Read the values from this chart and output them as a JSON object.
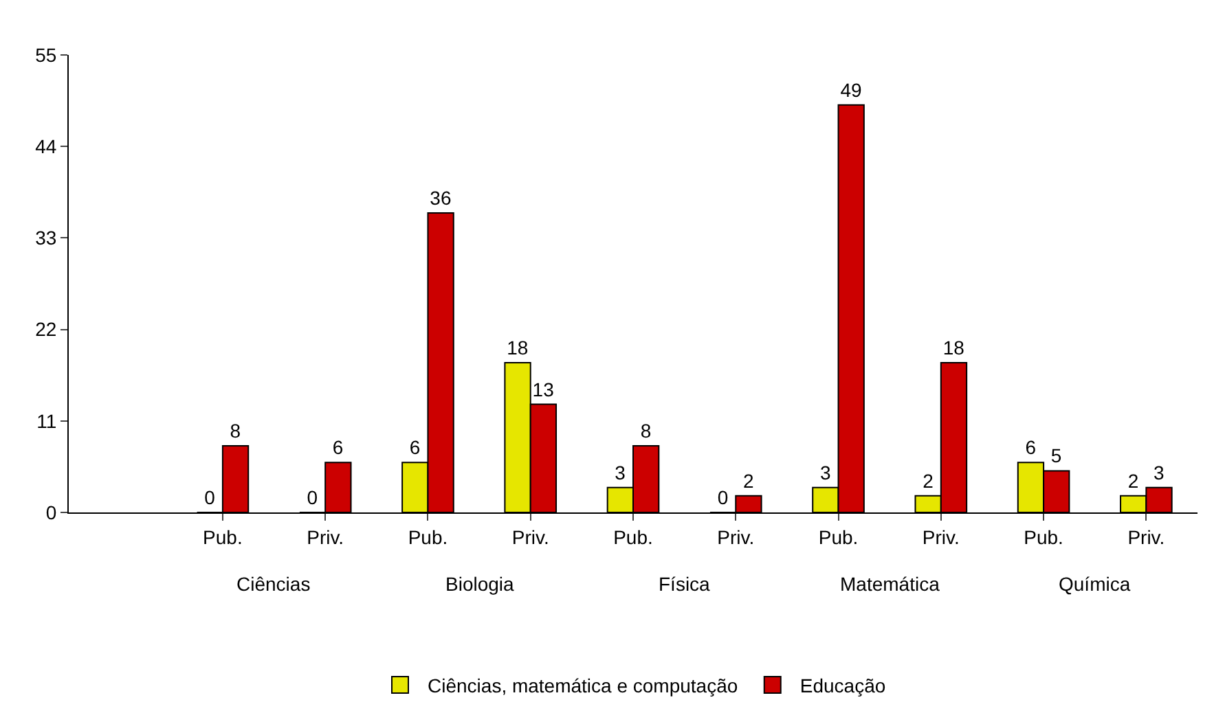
{
  "chart_data": {
    "type": "bar",
    "categories": [
      null,
      "Pub.",
      "Priv.",
      "Pub.",
      "Priv.",
      "Pub.",
      "Priv.",
      "Pub.",
      "Priv.",
      "Pub.",
      "Priv."
    ],
    "series": [
      {
        "name": "Ciências, matemática e computação",
        "color": "#e6e600",
        "values": [
          null,
          0,
          0,
          6,
          18,
          3,
          0,
          3,
          2,
          6,
          2
        ]
      },
      {
        "name": "Educação",
        "color": "#cc0000",
        "values": [
          null,
          8,
          6,
          36,
          13,
          8,
          2,
          49,
          18,
          5,
          3
        ]
      }
    ],
    "annotations": [
      "Ciências",
      "Biologia",
      "Física",
      "Matemática",
      "Química"
    ],
    "ylim": [
      0,
      55
    ],
    "yticks": [
      0,
      11,
      22,
      33,
      44,
      55
    ],
    "data_labels": true,
    "legend": "bottom"
  }
}
